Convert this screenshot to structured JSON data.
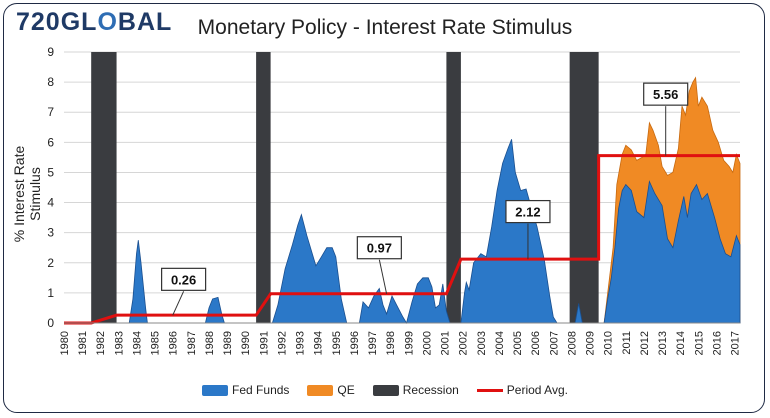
{
  "brand": {
    "logo_main": "720GL",
    "logo_accent": "O",
    "logo_end": "BAL"
  },
  "colors": {
    "fed_funds": "#2b78c8",
    "fed_funds_edge": "#1a4f8f",
    "qe": "#f08a24",
    "recession": "#3a3c40",
    "period_avg": "#e01010",
    "grid": "#d6d6d6"
  },
  "chart_data": {
    "type": "area",
    "title": "Monetary Policy - Interest Rate Stimulus",
    "xlabel": "",
    "ylabel": "% Interest Rate Stimulus",
    "xlim": [
      1980,
      2017.3
    ],
    "ylim": [
      0,
      9
    ],
    "yticks": [
      0,
      1,
      2,
      3,
      4,
      5,
      6,
      7,
      8,
      9
    ],
    "xticks": [
      "1980",
      "1981",
      "1982",
      "1983",
      "1984",
      "1985",
      "1986",
      "1987",
      "1988",
      "1989",
      "1990",
      "1991",
      "1992",
      "1993",
      "1994",
      "1995",
      "1996",
      "1997",
      "1998",
      "1999",
      "2000",
      "2001",
      "2002",
      "2003",
      "2004",
      "2005",
      "2006",
      "2007",
      "2008",
      "2009",
      "2010",
      "2011",
      "2012",
      "2013",
      "2014",
      "2015",
      "2016",
      "2017"
    ],
    "grid": "horizontal",
    "legend_position": "bottom",
    "series": [
      {
        "name": "Fed Funds",
        "kind": "area",
        "points": [
          [
            1980,
            0
          ],
          [
            1983.6,
            0
          ],
          [
            1983.8,
            0.8
          ],
          [
            1984.0,
            2.3
          ],
          [
            1984.1,
            2.75
          ],
          [
            1984.25,
            2.0
          ],
          [
            1984.5,
            0.5
          ],
          [
            1984.6,
            0
          ],
          [
            1987.8,
            0
          ],
          [
            1988.0,
            0.5
          ],
          [
            1988.2,
            0.8
          ],
          [
            1988.5,
            0.85
          ],
          [
            1988.7,
            0.3
          ],
          [
            1988.85,
            0
          ],
          [
            1991.5,
            0
          ],
          [
            1991.8,
            0.6
          ],
          [
            1992.2,
            1.8
          ],
          [
            1992.6,
            2.6
          ],
          [
            1992.9,
            3.25
          ],
          [
            1993.1,
            3.6
          ],
          [
            1993.4,
            2.9
          ],
          [
            1993.9,
            1.9
          ],
          [
            1994.2,
            2.2
          ],
          [
            1994.5,
            2.5
          ],
          [
            1994.8,
            2.5
          ],
          [
            1995.0,
            2.2
          ],
          [
            1995.3,
            0.8
          ],
          [
            1995.6,
            0
          ],
          [
            1996.3,
            0
          ],
          [
            1996.5,
            0.7
          ],
          [
            1996.8,
            0.5
          ],
          [
            1997.1,
            0.9
          ],
          [
            1997.4,
            1.15
          ],
          [
            1997.6,
            0.6
          ],
          [
            1997.8,
            0.3
          ],
          [
            1998.1,
            0.9
          ],
          [
            1998.35,
            0.6
          ],
          [
            1998.7,
            0.2
          ],
          [
            1998.9,
            0
          ],
          [
            1999.2,
            0.7
          ],
          [
            1999.5,
            1.3
          ],
          [
            1999.8,
            1.5
          ],
          [
            2000.1,
            1.5
          ],
          [
            2000.3,
            1.2
          ],
          [
            2000.5,
            0.5
          ],
          [
            2000.7,
            0.6
          ],
          [
            2000.9,
            1.3
          ],
          [
            2001.1,
            0.4
          ],
          [
            2001.3,
            0
          ],
          [
            2001.9,
            0
          ],
          [
            2002.1,
            1.0
          ],
          [
            2002.2,
            1.35
          ],
          [
            2002.35,
            1.1
          ],
          [
            2002.6,
            2.0
          ],
          [
            2003.0,
            2.3
          ],
          [
            2003.3,
            2.2
          ],
          [
            2003.6,
            3.2
          ],
          [
            2003.9,
            4.4
          ],
          [
            2004.2,
            5.3
          ],
          [
            2004.5,
            5.8
          ],
          [
            2004.7,
            6.1
          ],
          [
            2004.9,
            5.0
          ],
          [
            2005.2,
            4.4
          ],
          [
            2005.5,
            4.45
          ],
          [
            2005.8,
            3.8
          ],
          [
            2006.1,
            3.2
          ],
          [
            2006.5,
            2.1
          ],
          [
            2006.8,
            0.9
          ],
          [
            2007.0,
            0.2
          ],
          [
            2007.2,
            0
          ],
          [
            2008.2,
            0
          ],
          [
            2008.4,
            0.65
          ],
          [
            2008.6,
            0
          ],
          [
            2009.8,
            0
          ],
          [
            2010.0,
            0.8
          ],
          [
            2010.2,
            1.5
          ],
          [
            2010.4,
            2.5
          ],
          [
            2010.6,
            3.8
          ],
          [
            2010.8,
            4.4
          ],
          [
            2011.0,
            4.6
          ],
          [
            2011.3,
            4.4
          ],
          [
            2011.6,
            3.7
          ],
          [
            2012.0,
            3.5
          ],
          [
            2012.3,
            4.7
          ],
          [
            2012.6,
            4.3
          ],
          [
            2013.0,
            3.9
          ],
          [
            2013.3,
            2.8
          ],
          [
            2013.6,
            2.5
          ],
          [
            2013.9,
            3.4
          ],
          [
            2014.2,
            4.2
          ],
          [
            2014.4,
            3.5
          ],
          [
            2014.6,
            4.3
          ],
          [
            2014.9,
            4.6
          ],
          [
            2015.2,
            4.1
          ],
          [
            2015.5,
            4.3
          ],
          [
            2015.9,
            3.5
          ],
          [
            2016.2,
            2.8
          ],
          [
            2016.5,
            2.3
          ],
          [
            2016.8,
            2.2
          ],
          [
            2017.1,
            2.9
          ],
          [
            2017.3,
            2.6
          ],
          [
            2017.3,
            0
          ]
        ]
      },
      {
        "name": "QE",
        "kind": "area",
        "points": [
          [
            2009.8,
            0
          ],
          [
            2010.0,
            1.0
          ],
          [
            2010.3,
            2.5
          ],
          [
            2010.5,
            4.6
          ],
          [
            2010.8,
            5.6
          ],
          [
            2011.0,
            5.9
          ],
          [
            2011.3,
            5.75
          ],
          [
            2011.6,
            5.4
          ],
          [
            2011.9,
            5.5
          ],
          [
            2012.1,
            5.6
          ],
          [
            2012.3,
            6.65
          ],
          [
            2012.5,
            6.4
          ],
          [
            2012.8,
            5.9
          ],
          [
            2013.0,
            5.2
          ],
          [
            2013.3,
            4.9
          ],
          [
            2013.6,
            5.0
          ],
          [
            2013.9,
            5.8
          ],
          [
            2014.1,
            7.2
          ],
          [
            2014.3,
            6.9
          ],
          [
            2014.5,
            7.7
          ],
          [
            2014.7,
            8.0
          ],
          [
            2014.85,
            8.15
          ],
          [
            2015.0,
            7.2
          ],
          [
            2015.2,
            7.5
          ],
          [
            2015.5,
            7.2
          ],
          [
            2015.8,
            6.4
          ],
          [
            2016.1,
            6.0
          ],
          [
            2016.4,
            5.4
          ],
          [
            2016.7,
            5.2
          ],
          [
            2016.9,
            5.0
          ],
          [
            2017.1,
            5.6
          ],
          [
            2017.3,
            5.3
          ],
          [
            2017.3,
            0
          ]
        ]
      },
      {
        "name": "Recession",
        "kind": "bands",
        "bands": [
          [
            1981.5,
            1982.9
          ],
          [
            1990.6,
            1991.4
          ],
          [
            2001.1,
            2001.9
          ],
          [
            2007.9,
            2009.5
          ]
        ]
      },
      {
        "name": "Period Avg.",
        "kind": "step",
        "segments": [
          {
            "from": 1980,
            "to": 1981.5,
            "value": 0
          },
          {
            "from": 1982.9,
            "to": 1990.6,
            "value": 0.26
          },
          {
            "from": 1991.4,
            "to": 2001.1,
            "value": 0.97
          },
          {
            "from": 2001.9,
            "to": 2009.5,
            "value": 2.12
          },
          {
            "from": 2009.5,
            "to": 2017.3,
            "value": 5.56
          }
        ]
      }
    ],
    "annotations": [
      {
        "text": "0.26",
        "x": 1986.6,
        "y": 1.45,
        "pointer_to": [
          1986.0,
          0.26
        ]
      },
      {
        "text": "0.97",
        "x": 1997.4,
        "y": 2.5,
        "pointer_to": [
          1997.8,
          0.97
        ]
      },
      {
        "text": "2.12",
        "x": 2005.6,
        "y": 3.7,
        "pointer_to": [
          2005.6,
          2.12
        ]
      },
      {
        "text": "5.56",
        "x": 2013.2,
        "y": 7.6,
        "pointer_to": [
          2013.2,
          5.56
        ]
      }
    ],
    "legend": [
      "Fed Funds",
      "QE",
      "Recession",
      "Period Avg."
    ]
  }
}
